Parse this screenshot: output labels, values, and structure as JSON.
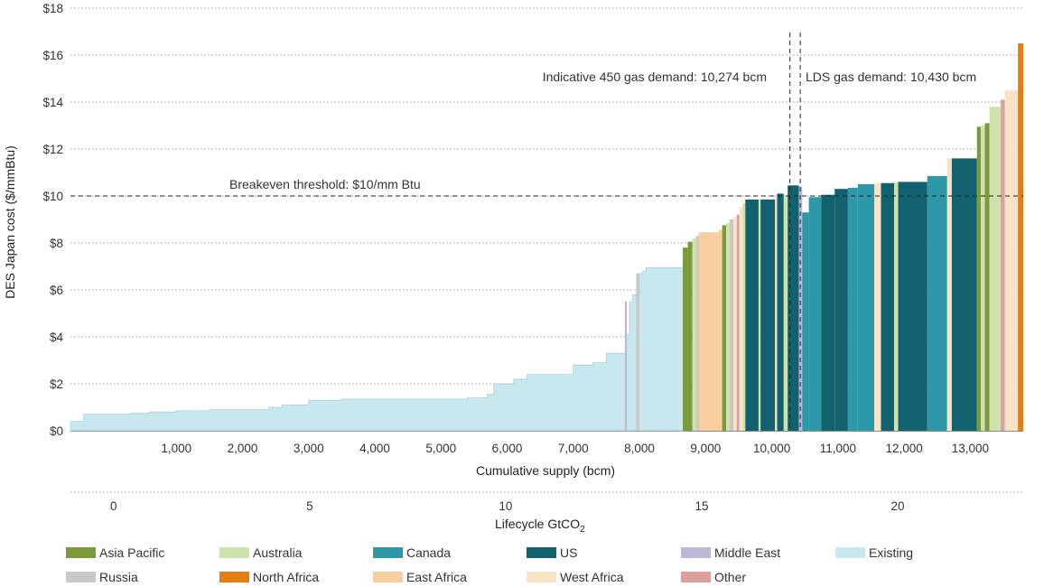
{
  "chart_data": {
    "type": "bar",
    "ylabel": "DES Japan cost ($/mmBtu)",
    "xlabel": "Cumulative supply (bcm)",
    "x2label": "Lifecycle GtCO",
    "x2label_sub": "2",
    "ylim": [
      0,
      18
    ],
    "xlim": [
      -600,
      13800
    ],
    "x2lim": [
      -1.1,
      23.2
    ],
    "yticks": [
      "$0",
      "$2",
      "$4",
      "$6",
      "$8",
      "$10",
      "$12",
      "$14",
      "$16",
      "$18"
    ],
    "ytick_values": [
      0,
      2,
      4,
      6,
      8,
      10,
      12,
      14,
      16,
      18
    ],
    "xticks": [
      "1,000",
      "2,000",
      "3,000",
      "4,000",
      "5,000",
      "6,000",
      "7,000",
      "8,000",
      "9,000",
      "10,000",
      "11,000",
      "12,000",
      "13,000"
    ],
    "xtick_values": [
      1000,
      2000,
      3000,
      4000,
      5000,
      6000,
      7000,
      8000,
      9000,
      10000,
      11000,
      12000,
      13000
    ],
    "x2ticks": [
      "0",
      "5",
      "10",
      "15",
      "20"
    ],
    "x2tick_values": [
      0,
      5,
      10,
      15,
      20
    ],
    "grid": true,
    "annotations": {
      "breakeven": "Breakeven threshold:  $10/mm Btu",
      "breakeven_value": 10,
      "demand450": "Indicative 450 gas demand: 10,274 bcm",
      "demand450_value": 10274,
      "lds": "LDS gas demand: 10,430 bcm",
      "lds_value": 10430
    },
    "legend": [
      {
        "name": "Asia Pacific",
        "color": "#7a9a3c"
      },
      {
        "name": "Australia",
        "color": "#cfe2ac"
      },
      {
        "name": "Canada",
        "color": "#2e97a8"
      },
      {
        "name": "US",
        "color": "#12616f"
      },
      {
        "name": "Middle East",
        "color": "#bfb5d6"
      },
      {
        "name": "Existing",
        "color": "#c6e8ee"
      },
      {
        "name": "Russia",
        "color": "#c8c8c8"
      },
      {
        "name": "North Africa",
        "color": "#e57e0f"
      },
      {
        "name": "East Africa",
        "color": "#f8cea0"
      },
      {
        "name": "West Africa",
        "color": "#f9e3c6"
      },
      {
        "name": "Other",
        "color": "#dca09c"
      }
    ],
    "series_existing": {
      "name": "Existing",
      "points": [
        [
          -600,
          0.4
        ],
        [
          -400,
          0.7
        ],
        [
          0,
          0.7
        ],
        [
          300,
          0.75
        ],
        [
          600,
          0.8
        ],
        [
          1000,
          0.85
        ],
        [
          1500,
          0.9
        ],
        [
          2400,
          1.0
        ],
        [
          2600,
          1.1
        ],
        [
          3000,
          1.3
        ],
        [
          3500,
          1.35
        ],
        [
          4500,
          1.35
        ],
        [
          5400,
          1.4
        ],
        [
          5700,
          1.55
        ],
        [
          5800,
          2.0
        ],
        [
          6100,
          2.2
        ],
        [
          6300,
          2.4
        ],
        [
          7000,
          2.8
        ],
        [
          7300,
          2.9
        ],
        [
          7500,
          3.3
        ],
        [
          7800,
          4.1
        ],
        [
          7850,
          5.5
        ],
        [
          7900,
          5.8
        ],
        [
          8000,
          6.7
        ],
        [
          8050,
          6.8
        ],
        [
          8100,
          6.95
        ],
        [
          8700,
          0
        ]
      ]
    },
    "bars": [
      {
        "x0": 7780,
        "x1": 7810,
        "value": 5.5,
        "group": "Middle East"
      },
      {
        "x0": 7950,
        "x1": 8000,
        "value": 6.7,
        "group": "Russia"
      },
      {
        "x0": 8655,
        "x1": 8730,
        "value": 7.8,
        "group": "Asia Pacific"
      },
      {
        "x0": 8730,
        "x1": 8800,
        "value": 8.05,
        "group": "Asia Pacific"
      },
      {
        "x0": 8800,
        "x1": 8855,
        "value": 8.2,
        "group": "Australia"
      },
      {
        "x0": 8855,
        "x1": 8900,
        "value": 8.3,
        "group": "Russia"
      },
      {
        "x0": 8900,
        "x1": 9200,
        "value": 8.45,
        "group": "East Africa"
      },
      {
        "x0": 9200,
        "x1": 9250,
        "value": 8.55,
        "group": "East Africa"
      },
      {
        "x0": 9250,
        "x1": 9310,
        "value": 8.75,
        "group": "Asia Pacific"
      },
      {
        "x0": 9310,
        "x1": 9360,
        "value": 8.85,
        "group": "Australia"
      },
      {
        "x0": 9360,
        "x1": 9420,
        "value": 9.0,
        "group": "Russia"
      },
      {
        "x0": 9420,
        "x1": 9470,
        "value": 9.1,
        "group": "West Africa"
      },
      {
        "x0": 9470,
        "x1": 9510,
        "value": 9.2,
        "group": "Other"
      },
      {
        "x0": 9510,
        "x1": 9560,
        "value": 9.55,
        "group": "West Africa"
      },
      {
        "x0": 9560,
        "x1": 9600,
        "value": 9.7,
        "group": "Australia"
      },
      {
        "x0": 9600,
        "x1": 9800,
        "value": 9.85,
        "group": "US"
      },
      {
        "x0": 9800,
        "x1": 9830,
        "value": 9.85,
        "group": "Australia"
      },
      {
        "x0": 9830,
        "x1": 10050,
        "value": 9.85,
        "group": "US"
      },
      {
        "x0": 10050,
        "x1": 10080,
        "value": 9.95,
        "group": "West Africa"
      },
      {
        "x0": 10080,
        "x1": 10180,
        "value": 10.1,
        "group": "US"
      },
      {
        "x0": 10180,
        "x1": 10240,
        "value": 10.0,
        "group": "Australia"
      },
      {
        "x0": 10240,
        "x1": 10410,
        "value": 10.45,
        "group": "US"
      },
      {
        "x0": 10410,
        "x1": 10460,
        "value": 10.4,
        "group": "Middle East"
      },
      {
        "x0": 10460,
        "x1": 10560,
        "value": 9.3,
        "group": "Canada"
      },
      {
        "x0": 10560,
        "x1": 10750,
        "value": 9.95,
        "group": "Canada"
      },
      {
        "x0": 10750,
        "x1": 10950,
        "value": 10.05,
        "group": "US"
      },
      {
        "x0": 10950,
        "x1": 11150,
        "value": 10.3,
        "group": "US"
      },
      {
        "x0": 11150,
        "x1": 11300,
        "value": 10.35,
        "group": "Canada"
      },
      {
        "x0": 11300,
        "x1": 11550,
        "value": 10.5,
        "group": "Canada"
      },
      {
        "x0": 11550,
        "x1": 11650,
        "value": 10.55,
        "group": "West Africa"
      },
      {
        "x0": 11650,
        "x1": 11850,
        "value": 10.55,
        "group": "US"
      },
      {
        "x0": 11850,
        "x1": 11910,
        "value": 10.6,
        "group": "Australia"
      },
      {
        "x0": 11910,
        "x1": 12350,
        "value": 10.6,
        "group": "US"
      },
      {
        "x0": 12350,
        "x1": 12650,
        "value": 10.85,
        "group": "Canada"
      },
      {
        "x0": 12650,
        "x1": 12720,
        "value": 11.6,
        "group": "West Africa"
      },
      {
        "x0": 12720,
        "x1": 13100,
        "value": 11.6,
        "group": "US"
      },
      {
        "x0": 13100,
        "x1": 13160,
        "value": 12.95,
        "group": "Asia Pacific"
      },
      {
        "x0": 13160,
        "x1": 13220,
        "value": 13.0,
        "group": "Australia"
      },
      {
        "x0": 13220,
        "x1": 13290,
        "value": 13.1,
        "group": "Asia Pacific"
      },
      {
        "x0": 13290,
        "x1": 13460,
        "value": 13.8,
        "group": "Australia"
      },
      {
        "x0": 13460,
        "x1": 13520,
        "value": 14.1,
        "group": "Other"
      },
      {
        "x0": 13520,
        "x1": 13720,
        "value": 14.5,
        "group": "West Africa"
      },
      {
        "x0": 13720,
        "x1": 13800,
        "value": 16.5,
        "group": "North Africa"
      }
    ]
  },
  "legend_items": [
    "Asia Pacific",
    "Australia",
    "Canada",
    "US",
    "Middle East",
    "Existing",
    "Russia",
    "North Africa",
    "East Africa",
    "West Africa",
    "Other"
  ]
}
